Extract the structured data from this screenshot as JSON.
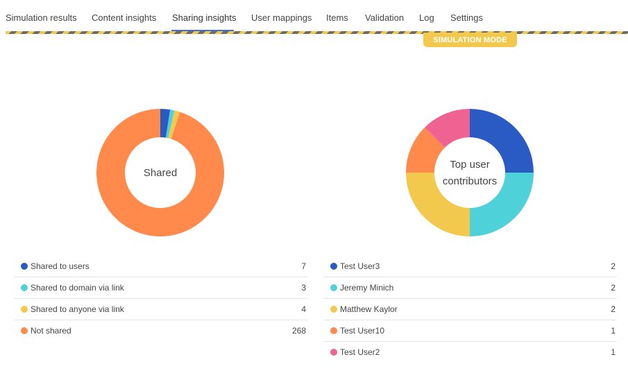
{
  "tabs": [
    {
      "label": "Simulation results"
    },
    {
      "label": "Content insights"
    },
    {
      "label": "Sharing insights"
    },
    {
      "label": "User mappings"
    },
    {
      "label": "Items"
    },
    {
      "label": "Validation"
    },
    {
      "label": "Log"
    },
    {
      "label": "Settings"
    }
  ],
  "active_tab": "Sharing insights",
  "simulation_badge": "SIMULATION MODE",
  "sharing_chart": {
    "center_label": "Shared",
    "items": [
      {
        "label": "Shared to users",
        "value": "7",
        "color": "#2a5bc4"
      },
      {
        "label": "Shared to domain via link",
        "value": "3",
        "color": "#4fd1d9"
      },
      {
        "label": "Shared to anyone via link",
        "value": "4",
        "color": "#f2c94c"
      },
      {
        "label": "Not shared",
        "value": "268",
        "color": "#ff8a4c"
      }
    ]
  },
  "contributors_chart": {
    "center_label_line1": "Top user",
    "center_label_line2": "contributors",
    "items": [
      {
        "label": "Test User3",
        "value": "2",
        "color": "#2a5bc4"
      },
      {
        "label": "Jeremy Minich",
        "value": "2",
        "color": "#4fd1d9"
      },
      {
        "label": "Matthew Kaylor",
        "value": "2",
        "color": "#f2c94c"
      },
      {
        "label": "Test User10",
        "value": "1",
        "color": "#ff8a4c"
      },
      {
        "label": "Test User2",
        "value": "1",
        "color": "#f06292"
      }
    ]
  }
}
